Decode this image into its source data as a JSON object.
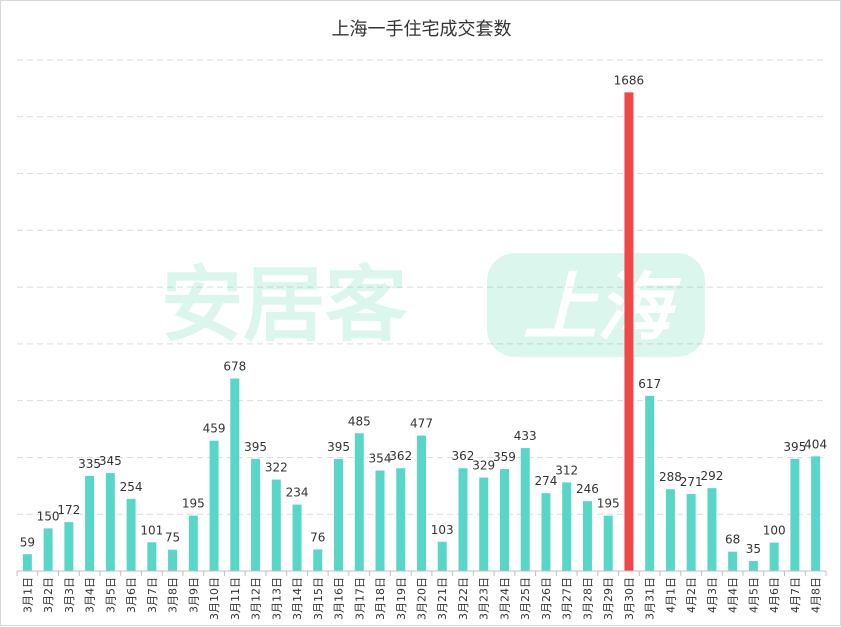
{
  "chart_data": {
    "type": "bar",
    "title": "上海一手住宅成交套数",
    "xlabel": "",
    "ylabel": "",
    "ylim": [
      0,
      1800
    ],
    "grid": true,
    "legend": "none",
    "categories": [
      "3月1日",
      "3月2日",
      "3月3日",
      "3月4日",
      "3月5日",
      "3月6日",
      "3月7日",
      "3月8日",
      "3月9日",
      "3月10日",
      "3月11日",
      "3月12日",
      "3月13日",
      "3月14日",
      "3月15日",
      "3月16日",
      "3月17日",
      "3月18日",
      "3月19日",
      "3月20日",
      "3月21日",
      "3月22日",
      "3月23日",
      "3月24日",
      "3月25日",
      "3月26日",
      "3月27日",
      "3月28日",
      "3月29日",
      "3月30日",
      "3月31日",
      "4月1日",
      "4月2日",
      "4月3日",
      "4月4日",
      "4月5日",
      "4月6日",
      "4月7日",
      "4月8日"
    ],
    "values": [
      59,
      150,
      172,
      335,
      345,
      254,
      101,
      75,
      195,
      459,
      678,
      395,
      322,
      234,
      76,
      395,
      485,
      354,
      362,
      477,
      103,
      362,
      329,
      359,
      433,
      274,
      312,
      246,
      195,
      1686,
      617,
      288,
      271,
      292,
      68,
      35,
      100,
      395,
      404
    ],
    "highlight_index": 29
  },
  "colors": {
    "bar": "#58d6c7",
    "highlight": "#f04848",
    "watermark": "#3ccf98"
  },
  "watermark": {
    "brand": "安居客",
    "city": "上海"
  }
}
